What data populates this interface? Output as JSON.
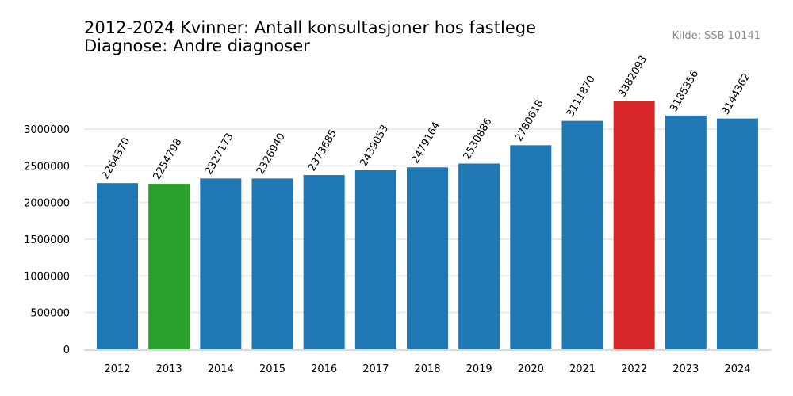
{
  "chart_data": {
    "type": "bar",
    "title": "2012-2024 Kvinner: Antall konsultasjoner hos fastlege",
    "subtitle": "Diagnose: Andre diagnoser",
    "source": "Kilde: SSB 10141",
    "categories": [
      "2012",
      "2013",
      "2014",
      "2015",
      "2016",
      "2017",
      "2018",
      "2019",
      "2020",
      "2021",
      "2022",
      "2023",
      "2024"
    ],
    "values": [
      2264370,
      2254798,
      2327173,
      2326940,
      2373685,
      2439053,
      2479164,
      2530886,
      2780618,
      3111870,
      3382093,
      3185356,
      3144362
    ],
    "colors": [
      "#1f77b4",
      "#2ca02c",
      "#1f77b4",
      "#1f77b4",
      "#1f77b4",
      "#1f77b4",
      "#1f77b4",
      "#1f77b4",
      "#1f77b4",
      "#1f77b4",
      "#d62728",
      "#1f77b4",
      "#1f77b4"
    ],
    "yticks": [
      0,
      500000,
      1000000,
      1500000,
      2000000,
      2500000,
      3000000
    ],
    "ylim": [
      0,
      3550000
    ],
    "grid": true,
    "xlabel": "",
    "ylabel": ""
  }
}
